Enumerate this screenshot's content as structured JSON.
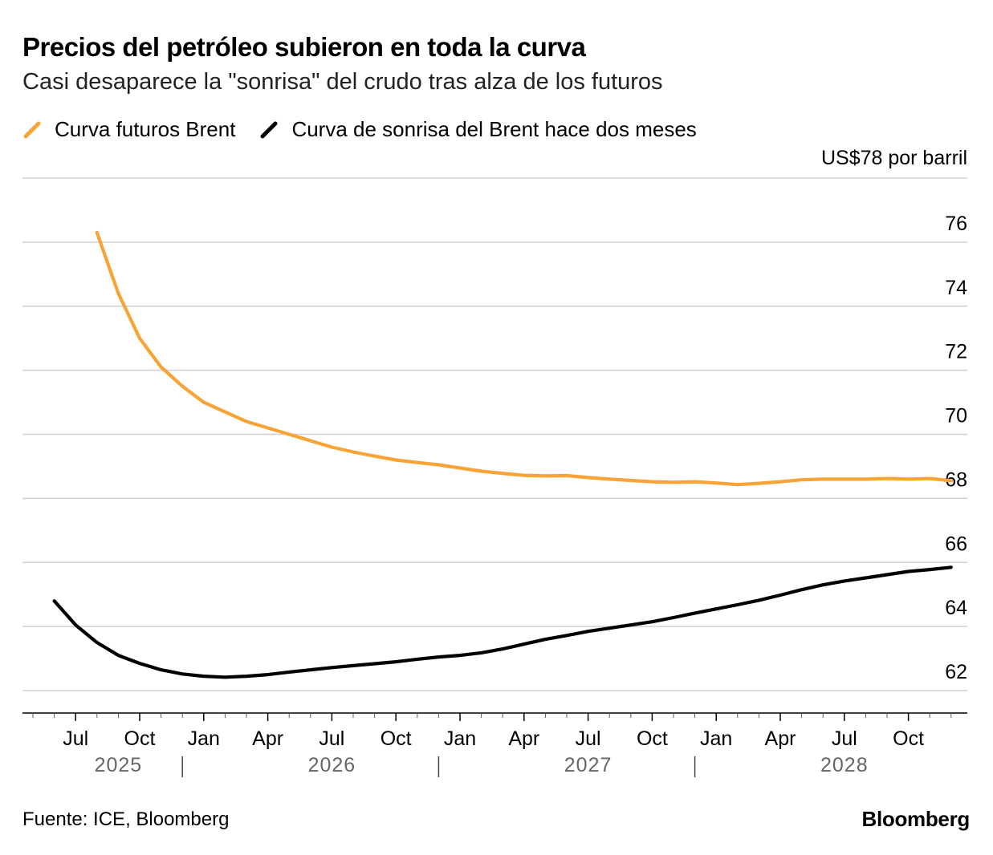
{
  "header": {
    "title": "Precios del petróleo subieron en toda la curva",
    "subtitle": "Casi desaparece la \"sonrisa\" del crudo tras alza de los futuros"
  },
  "legend": [
    {
      "label": "Curva futuros Brent",
      "color": "#F7A335"
    },
    {
      "label": "Curva de sonrisa del Brent hace dos meses",
      "color": "#000000"
    }
  ],
  "footer": {
    "source": "Fuente: ICE, Bloomberg",
    "logo": "Bloomberg"
  },
  "chart_data": {
    "type": "line",
    "ylim": [
      61.3,
      78
    ],
    "y_unit_label": "US$78 por barril",
    "y_ticks": [
      62,
      64,
      66,
      68,
      70,
      72,
      74,
      76
    ],
    "x_range": [
      "2025-05",
      "2028-12"
    ],
    "x_tick_labels": [
      {
        "month": "2025-07",
        "label": "Jul"
      },
      {
        "month": "2025-10",
        "label": "Oct"
      },
      {
        "month": "2026-01",
        "label": "Jan"
      },
      {
        "month": "2026-04",
        "label": "Apr"
      },
      {
        "month": "2026-07",
        "label": "Jul"
      },
      {
        "month": "2026-10",
        "label": "Oct"
      },
      {
        "month": "2027-01",
        "label": "Jan"
      },
      {
        "month": "2027-04",
        "label": "Apr"
      },
      {
        "month": "2027-07",
        "label": "Jul"
      },
      {
        "month": "2027-10",
        "label": "Oct"
      },
      {
        "month": "2028-01",
        "label": "Jan"
      },
      {
        "month": "2028-04",
        "label": "Apr"
      },
      {
        "month": "2028-07",
        "label": "Jul"
      },
      {
        "month": "2028-10",
        "label": "Oct"
      }
    ],
    "year_labels": [
      {
        "label": "2025",
        "month": "2025-09"
      },
      {
        "label": "2026",
        "month": "2026-07"
      },
      {
        "label": "2027",
        "month": "2027-07"
      },
      {
        "label": "2028",
        "month": "2028-07"
      }
    ],
    "year_separators": [
      "2025-12",
      "2026-12",
      "2027-12"
    ],
    "series": [
      {
        "name": "Curva futuros Brent",
        "color": "#F7A335",
        "x": [
          "2025-08",
          "2025-09",
          "2025-10",
          "2025-11",
          "2025-12",
          "2026-01",
          "2026-02",
          "2026-03",
          "2026-04",
          "2026-05",
          "2026-06",
          "2026-07",
          "2026-08",
          "2026-09",
          "2026-10",
          "2026-11",
          "2026-12",
          "2027-01",
          "2027-02",
          "2027-03",
          "2027-04",
          "2027-05",
          "2027-06",
          "2027-07",
          "2027-08",
          "2027-09",
          "2027-10",
          "2027-11",
          "2027-12",
          "2028-01",
          "2028-02",
          "2028-03",
          "2028-04",
          "2028-05",
          "2028-06",
          "2028-07",
          "2028-08",
          "2028-09",
          "2028-10",
          "2028-11",
          "2028-12"
        ],
        "values": [
          76.3,
          74.4,
          73.0,
          72.1,
          71.5,
          71.0,
          70.7,
          70.4,
          70.2,
          70.0,
          69.8,
          69.6,
          69.45,
          69.32,
          69.2,
          69.12,
          69.05,
          68.95,
          68.85,
          68.78,
          68.72,
          68.7,
          68.71,
          68.65,
          68.6,
          68.56,
          68.52,
          68.5,
          68.52,
          68.48,
          68.43,
          68.47,
          68.52,
          68.58,
          68.6,
          68.6,
          68.6,
          68.62,
          68.6,
          68.62,
          68.55
        ]
      },
      {
        "name": "Curva de sonrisa del Brent hace dos meses",
        "color": "#000000",
        "x": [
          "2025-06",
          "2025-07",
          "2025-08",
          "2025-09",
          "2025-10",
          "2025-11",
          "2025-12",
          "2026-01",
          "2026-02",
          "2026-03",
          "2026-04",
          "2026-05",
          "2026-06",
          "2026-07",
          "2026-08",
          "2026-09",
          "2026-10",
          "2026-11",
          "2026-12",
          "2027-01",
          "2027-02",
          "2027-03",
          "2027-04",
          "2027-05",
          "2027-06",
          "2027-07",
          "2027-08",
          "2027-09",
          "2027-10",
          "2027-11",
          "2027-12",
          "2028-01",
          "2028-02",
          "2028-03",
          "2028-04",
          "2028-05",
          "2028-06",
          "2028-07",
          "2028-08",
          "2028-09",
          "2028-10",
          "2028-11",
          "2028-12"
        ],
        "values": [
          64.8,
          64.05,
          63.5,
          63.1,
          62.85,
          62.65,
          62.52,
          62.45,
          62.42,
          62.45,
          62.5,
          62.58,
          62.65,
          62.72,
          62.78,
          62.84,
          62.9,
          62.98,
          63.05,
          63.1,
          63.18,
          63.3,
          63.45,
          63.6,
          63.72,
          63.85,
          63.95,
          64.05,
          64.15,
          64.28,
          64.42,
          64.55,
          64.68,
          64.82,
          64.98,
          65.15,
          65.3,
          65.42,
          65.52,
          65.62,
          65.72,
          65.78,
          65.85
        ]
      }
    ]
  }
}
